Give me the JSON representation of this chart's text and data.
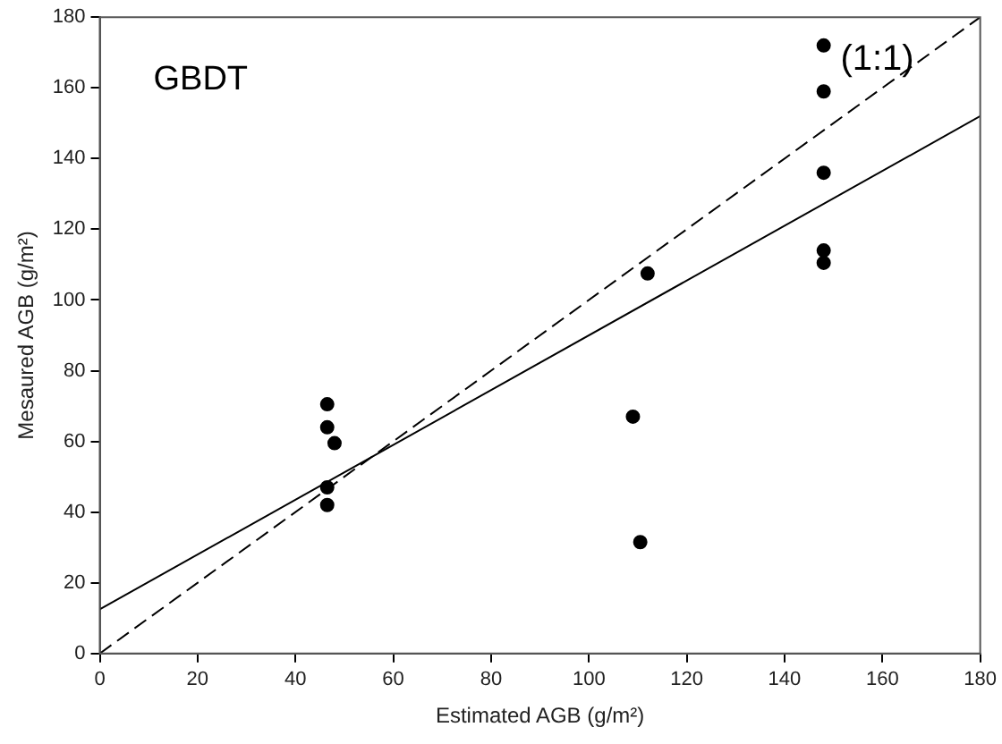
{
  "chart_data": {
    "type": "scatter",
    "xlabel": "Estimated AGB (g/m²)",
    "ylabel": "Mesaured AGB (g/m²)",
    "xlim": [
      0,
      180
    ],
    "ylim": [
      0,
      180
    ],
    "xticks": [
      0,
      20,
      40,
      60,
      80,
      100,
      120,
      140,
      160,
      180
    ],
    "yticks": [
      0,
      20,
      40,
      60,
      80,
      100,
      120,
      140,
      160,
      180
    ],
    "legend": false,
    "annotations": [
      "GBDT",
      "(1:1)"
    ],
    "series": [
      {
        "marker": "circle",
        "color": "#000000",
        "x": [
          46.5,
          46.5,
          48,
          46.5,
          46.5,
          109,
          110.5,
          112,
          148,
          148,
          148,
          148,
          148
        ],
        "values": [
          70.5,
          64,
          59.5,
          47,
          42,
          67,
          31.5,
          107.5,
          172,
          159,
          136,
          114,
          110.5
        ]
      },
      {
        "type": "line",
        "marker": "none",
        "line_style": "solid",
        "color": "#000000",
        "x": [
          0,
          180
        ],
        "values": [
          12.5,
          152
        ]
      },
      {
        "type": "line",
        "marker": "none",
        "line_style": "dashed",
        "color": "#000000",
        "x": [
          0,
          180
        ],
        "values": [
          0,
          180
        ]
      }
    ]
  }
}
